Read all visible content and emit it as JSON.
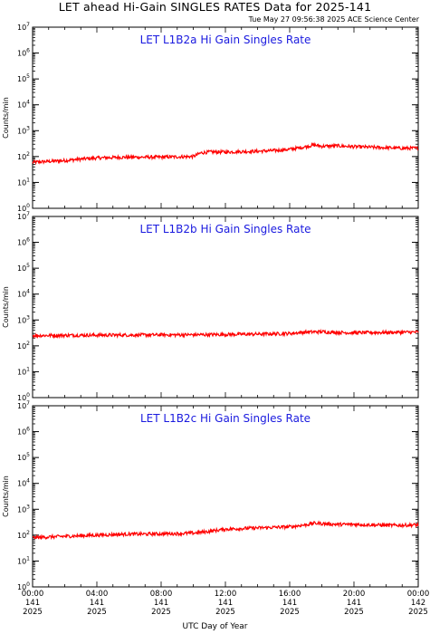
{
  "header": {
    "title": "LET ahead Hi-Gain SINGLES RATES Data for 2025-141",
    "timestamp": "Tue May 27 09:56:38 2025 ACE Science Center"
  },
  "colors": {
    "series": "#ff0000",
    "panel_title": "#1a1adf",
    "axis": "#000000"
  },
  "chart_data": [
    {
      "type": "line",
      "title": "LET L1B2a Hi Gain Singles Rate",
      "ylabel": "Counts/min",
      "yscale": "log",
      "ylim": [
        1,
        10000000
      ],
      "yticks": [
        "10^0",
        "10^1",
        "10^2",
        "10^3",
        "10^4",
        "10^5",
        "10^6",
        "10^7"
      ],
      "x_range_hours": [
        0,
        24
      ],
      "series": [
        {
          "x": [
            0,
            1,
            2,
            3,
            4,
            5,
            6,
            7,
            8,
            9,
            10,
            10.5,
            11,
            12,
            13,
            14,
            15,
            16,
            17,
            17.5,
            18,
            19,
            20,
            21,
            22,
            23,
            24
          ],
          "y": [
            60,
            65,
            70,
            80,
            88,
            92,
            95,
            95,
            95,
            98,
            100,
            140,
            150,
            150,
            155,
            160,
            170,
            190,
            240,
            280,
            250,
            260,
            240,
            230,
            220,
            210,
            210
          ]
        }
      ]
    },
    {
      "type": "line",
      "title": "LET L1B2b Hi Gain Singles Rate",
      "ylabel": "Counts/min",
      "yscale": "log",
      "ylim": [
        1,
        10000000
      ],
      "yticks": [
        "10^0",
        "10^1",
        "10^2",
        "10^3",
        "10^4",
        "10^5",
        "10^6",
        "10^7"
      ],
      "x_range_hours": [
        0,
        24
      ],
      "series": [
        {
          "x": [
            0,
            2,
            4,
            6,
            8,
            10,
            12,
            14,
            16,
            17,
            18,
            19,
            20,
            22,
            24
          ],
          "y": [
            250,
            255,
            260,
            262,
            265,
            268,
            275,
            285,
            300,
            340,
            350,
            330,
            320,
            330,
            340
          ]
        }
      ]
    },
    {
      "type": "line",
      "title": "LET L1B2c Hi Gain Singles Rate",
      "ylabel": "Counts/min",
      "yscale": "log",
      "ylim": [
        1,
        10000000
      ],
      "yticks": [
        "10^0",
        "10^1",
        "10^2",
        "10^3",
        "10^4",
        "10^5",
        "10^6",
        "10^7"
      ],
      "x_range_hours": [
        0,
        24
      ],
      "series": [
        {
          "x": [
            0,
            1,
            2,
            3,
            4,
            5,
            6,
            7,
            8,
            9,
            10,
            11,
            12,
            13,
            14,
            15,
            16,
            17,
            17.5,
            18,
            19,
            20,
            21,
            22,
            23,
            24
          ],
          "y": [
            80,
            85,
            90,
            95,
            100,
            105,
            110,
            110,
            112,
            115,
            120,
            140,
            170,
            180,
            190,
            200,
            210,
            250,
            290,
            280,
            260,
            260,
            250,
            240,
            240,
            250
          ]
        }
      ]
    }
  ],
  "x_axis": {
    "ticks": [
      {
        "time": "00:00",
        "doy": "141",
        "year": "2025"
      },
      {
        "time": "04:00",
        "doy": "141",
        "year": "2025"
      },
      {
        "time": "08:00",
        "doy": "141",
        "year": "2025"
      },
      {
        "time": "12:00",
        "doy": "141",
        "year": "2025"
      },
      {
        "time": "16:00",
        "doy": "141",
        "year": "2025"
      },
      {
        "time": "20:00",
        "doy": "141",
        "year": "2025"
      },
      {
        "time": "00:00",
        "doy": "142",
        "year": "2025"
      }
    ],
    "label": "UTC Day of Year"
  }
}
